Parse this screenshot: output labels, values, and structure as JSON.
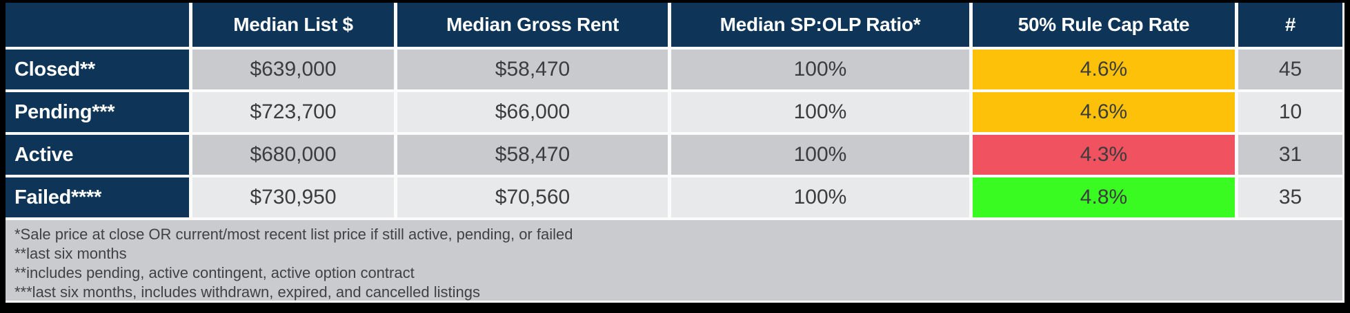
{
  "chart_data": {
    "type": "table",
    "columns": [
      "",
      "Median List $",
      "Median Gross Rent",
      "Median SP:OLP Ratio*",
      "50% Rule Cap Rate",
      "#"
    ],
    "rows": [
      [
        "Closed**",
        "$639,000",
        "$58,470",
        "100%",
        "4.6%",
        "45"
      ],
      [
        "Pending***",
        "$723,700",
        "$66,000",
        "100%",
        "4.6%",
        "10"
      ],
      [
        "Active",
        "$680,000",
        "$58,470",
        "100%",
        "4.3%",
        "31"
      ],
      [
        "Failed****",
        "$730,950",
        "$70,560",
        "100%",
        "4.8%",
        "35"
      ]
    ],
    "cap_rate_cell_colors": [
      "#fec10a",
      "#fec10a",
      "#f1525f",
      "#3afb21"
    ],
    "footnotes": [
      "*Sale price at close OR current/most recent list price if still active, pending, or failed",
      "**last six months",
      "**includes pending, active contingent, active option contract",
      "***last six months, includes withdrawn, expired, and cancelled listings"
    ]
  },
  "colors": {
    "header_navy": "#0e3557",
    "row_dark_gray": "#c9cacd",
    "row_light_gray": "#e8e9eb",
    "footnote_gray": "#c9cbce",
    "cap_rate_good": "#3afb21",
    "cap_rate_mid": "#fec10a",
    "cap_rate_bad": "#f1525f",
    "gridline_white": "#fbfbfb",
    "frame_black": "#000000"
  }
}
